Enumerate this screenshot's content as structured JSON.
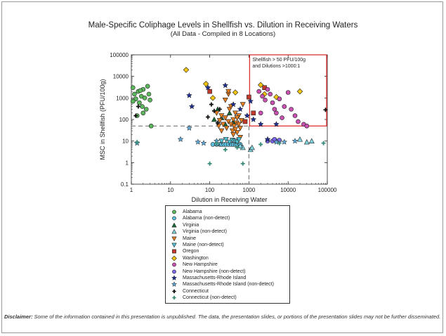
{
  "chart_data": {
    "type": "scatter",
    "title": "Male-Specific Coliphage Levels in Shellfish vs. Dilution in Receiving Waters",
    "subtitle": "(All Data - Compiled in 8 Locations)",
    "xlabel": "Dilution in Receiving Water",
    "ylabel": "MSC in Shellfish (PFU/100g)",
    "x_scale": "log",
    "y_scale": "log",
    "xlim": [
      1,
      100000
    ],
    "ylim": [
      0.1,
      100000
    ],
    "x_ticks": [
      "1",
      "10",
      "100",
      "1000",
      "10000",
      "100000"
    ],
    "y_ticks": [
      "0.1",
      "1",
      "10",
      "100",
      "1000",
      "10000",
      "100000"
    ],
    "grid": false,
    "threshold_lines": {
      "y": 50,
      "x": 1000
    },
    "annotation": {
      "line1": "Shellfish > 50 PFU/100g",
      "line2": "and Dilutions >1000:1",
      "x_range": [
        1000,
        100000
      ],
      "y_range": [
        50,
        100000
      ]
    },
    "legend_placement": "below",
    "series": [
      {
        "name": "Alabama",
        "marker": "circle",
        "color": "#5cb85c",
        "points": [
          [
            1.1,
            3000
          ],
          [
            1.2,
            1500
          ],
          [
            1.3,
            900
          ],
          [
            1.5,
            2000
          ],
          [
            1.6,
            600
          ],
          [
            1.8,
            1200
          ],
          [
            1.9,
            400
          ],
          [
            2.0,
            2500
          ],
          [
            2.2,
            1000
          ],
          [
            2.4,
            300
          ],
          [
            2.6,
            3500
          ],
          [
            2.8,
            1500
          ],
          [
            3.0,
            800
          ],
          [
            1.4,
            150
          ],
          [
            2.0,
            200
          ],
          [
            3.2,
            50
          ],
          [
            1.1,
            700
          ],
          [
            1.7,
            2200
          ]
        ]
      },
      {
        "name": "Alabama (non-detect)",
        "marker": "circle",
        "color": "#5bc0de",
        "points": [
          [
            120,
            7
          ],
          [
            150,
            7
          ],
          [
            180,
            7
          ],
          [
            200,
            7
          ],
          [
            230,
            7
          ],
          [
            260,
            7
          ],
          [
            300,
            7
          ],
          [
            350,
            7
          ],
          [
            400,
            7
          ],
          [
            450,
            7
          ],
          [
            500,
            7
          ],
          [
            600,
            7
          ]
        ]
      },
      {
        "name": "Virginia",
        "marker": "triangle-up",
        "color": "#1a6b3a",
        "points": [
          [
            130,
            100
          ],
          [
            160,
            300
          ],
          [
            200,
            120
          ],
          [
            250,
            60
          ],
          [
            320,
            200
          ],
          [
            400,
            80
          ]
        ]
      },
      {
        "name": "Virginia (non-detect)",
        "marker": "triangle-up",
        "color": "#7fd4e0",
        "points": [
          [
            700,
            5
          ],
          [
            1100,
            4
          ],
          [
            1200,
            5
          ],
          [
            20000,
            12
          ],
          [
            30000,
            9
          ],
          [
            40000,
            10
          ],
          [
            150,
            8
          ],
          [
            600,
            6
          ]
        ]
      },
      {
        "name": "Maine",
        "marker": "triangle-down",
        "color": "#e67e22",
        "points": [
          [
            150,
            200
          ],
          [
            180,
            90
          ],
          [
            200,
            150
          ],
          [
            220,
            60
          ],
          [
            250,
            120
          ],
          [
            270,
            40
          ],
          [
            300,
            80
          ],
          [
            320,
            300
          ],
          [
            350,
            60
          ],
          [
            380,
            30
          ],
          [
            400,
            100
          ],
          [
            420,
            50
          ],
          [
            450,
            200
          ],
          [
            480,
            70
          ],
          [
            500,
            25
          ],
          [
            550,
            150
          ],
          [
            600,
            40
          ],
          [
            650,
            90
          ],
          [
            700,
            500
          ],
          [
            250,
            800
          ],
          [
            300,
            1500
          ],
          [
            350,
            400
          ],
          [
            400,
            20
          ],
          [
            450,
            35
          ],
          [
            500,
            120
          ],
          [
            550,
            60
          ],
          [
            600,
            15
          ],
          [
            300,
            2000
          ],
          [
            200,
            30
          ],
          [
            170,
            50
          ]
        ]
      },
      {
        "name": "Maine (non-detect)",
        "marker": "triangle-down",
        "color": "#4fc3d4",
        "points": [
          [
            200,
            10
          ],
          [
            260,
            12
          ],
          [
            320,
            9
          ],
          [
            380,
            11
          ],
          [
            440,
            10
          ],
          [
            500,
            9
          ],
          [
            560,
            12
          ]
        ]
      },
      {
        "name": "Oregon",
        "marker": "square",
        "color": "#c0392b",
        "points": [
          [
            100,
            2000
          ],
          [
            800,
            80
          ],
          [
            1000,
            1100
          ],
          [
            1300,
            200
          ],
          [
            2500,
            3000
          ]
        ]
      },
      {
        "name": "Washington",
        "marker": "diamond",
        "color": "#f1c40f",
        "points": [
          [
            25,
            20000
          ],
          [
            80,
            4500
          ],
          [
            2000,
            4000
          ],
          [
            2500,
            1500
          ],
          [
            5000,
            1100
          ],
          [
            20000,
            2000
          ],
          [
            450,
            1800
          ],
          [
            120,
            1000
          ]
        ]
      },
      {
        "name": "New Hampshire",
        "marker": "circle",
        "color": "#c850b0",
        "points": [
          [
            1800,
            2000
          ],
          [
            2200,
            1200
          ],
          [
            2600,
            800
          ],
          [
            3000,
            2500
          ],
          [
            3500,
            1500
          ],
          [
            4000,
            600
          ],
          [
            5000,
            200
          ],
          [
            6000,
            900
          ],
          [
            7000,
            120
          ],
          [
            8000,
            400
          ],
          [
            10000,
            1800
          ],
          [
            12000,
            300
          ],
          [
            15000,
            150
          ],
          [
            18000,
            80
          ],
          [
            25000,
            60
          ],
          [
            30000,
            50
          ],
          [
            2000,
            200
          ],
          [
            4500,
            300
          ]
        ]
      },
      {
        "name": "New Hampshire (non-detect)",
        "marker": "circle",
        "color": "#7b68ee",
        "points": [
          [
            3000,
            10
          ],
          [
            4000,
            10
          ],
          [
            5000,
            10
          ],
          [
            6000,
            11
          ],
          [
            4500,
            12
          ]
        ]
      },
      {
        "name": "Massachusetts-Rhode Island",
        "marker": "star",
        "color": "#1f2f8f",
        "points": [
          [
            30,
            1300
          ],
          [
            35,
            400
          ],
          [
            90,
            3000
          ],
          [
            250,
            3800
          ],
          [
            400,
            500
          ],
          [
            600,
            300
          ],
          [
            900,
            150
          ],
          [
            1300,
            100
          ],
          [
            2000,
            60
          ],
          [
            3000,
            12
          ],
          [
            1100,
            700
          ],
          [
            5000,
            60
          ]
        ]
      },
      {
        "name": "Massachusetts-Rhode Island (non-detect)",
        "marker": "star",
        "color": "#5fa8d3",
        "points": [
          [
            1.4,
            8
          ],
          [
            18,
            12
          ],
          [
            50,
            9
          ],
          [
            70,
            8
          ],
          [
            5000,
            9
          ],
          [
            8000,
            9
          ],
          [
            15000,
            10
          ],
          [
            150,
            10
          ],
          [
            30,
            40
          ]
        ]
      },
      {
        "name": "Connecticut",
        "marker": "cross",
        "color": "#111111",
        "points": [
          [
            1.3,
            150
          ],
          [
            1.5,
            400
          ],
          [
            90,
            130
          ],
          [
            110,
            500
          ],
          [
            130,
            250
          ],
          [
            160,
            70
          ],
          [
            180,
            300
          ],
          [
            90000,
            280
          ]
        ]
      },
      {
        "name": "Connecticut (non-detect)",
        "marker": "cross",
        "color": "#3a8a7a",
        "points": [
          [
            1.4,
            9
          ],
          [
            100,
            0.9
          ],
          [
            150,
            8
          ],
          [
            500,
            5
          ],
          [
            700,
            0.9
          ],
          [
            2000,
            7
          ],
          [
            6000,
            8
          ],
          [
            80000,
            8
          ],
          [
            250,
            4
          ]
        ]
      }
    ]
  },
  "disclaimer": {
    "label": "Disclaimer:",
    "text": "Some of the information contained in this presentation is unpublished. The data, the presentation slides, or portions of the presentation slides may not be further disseminated."
  }
}
